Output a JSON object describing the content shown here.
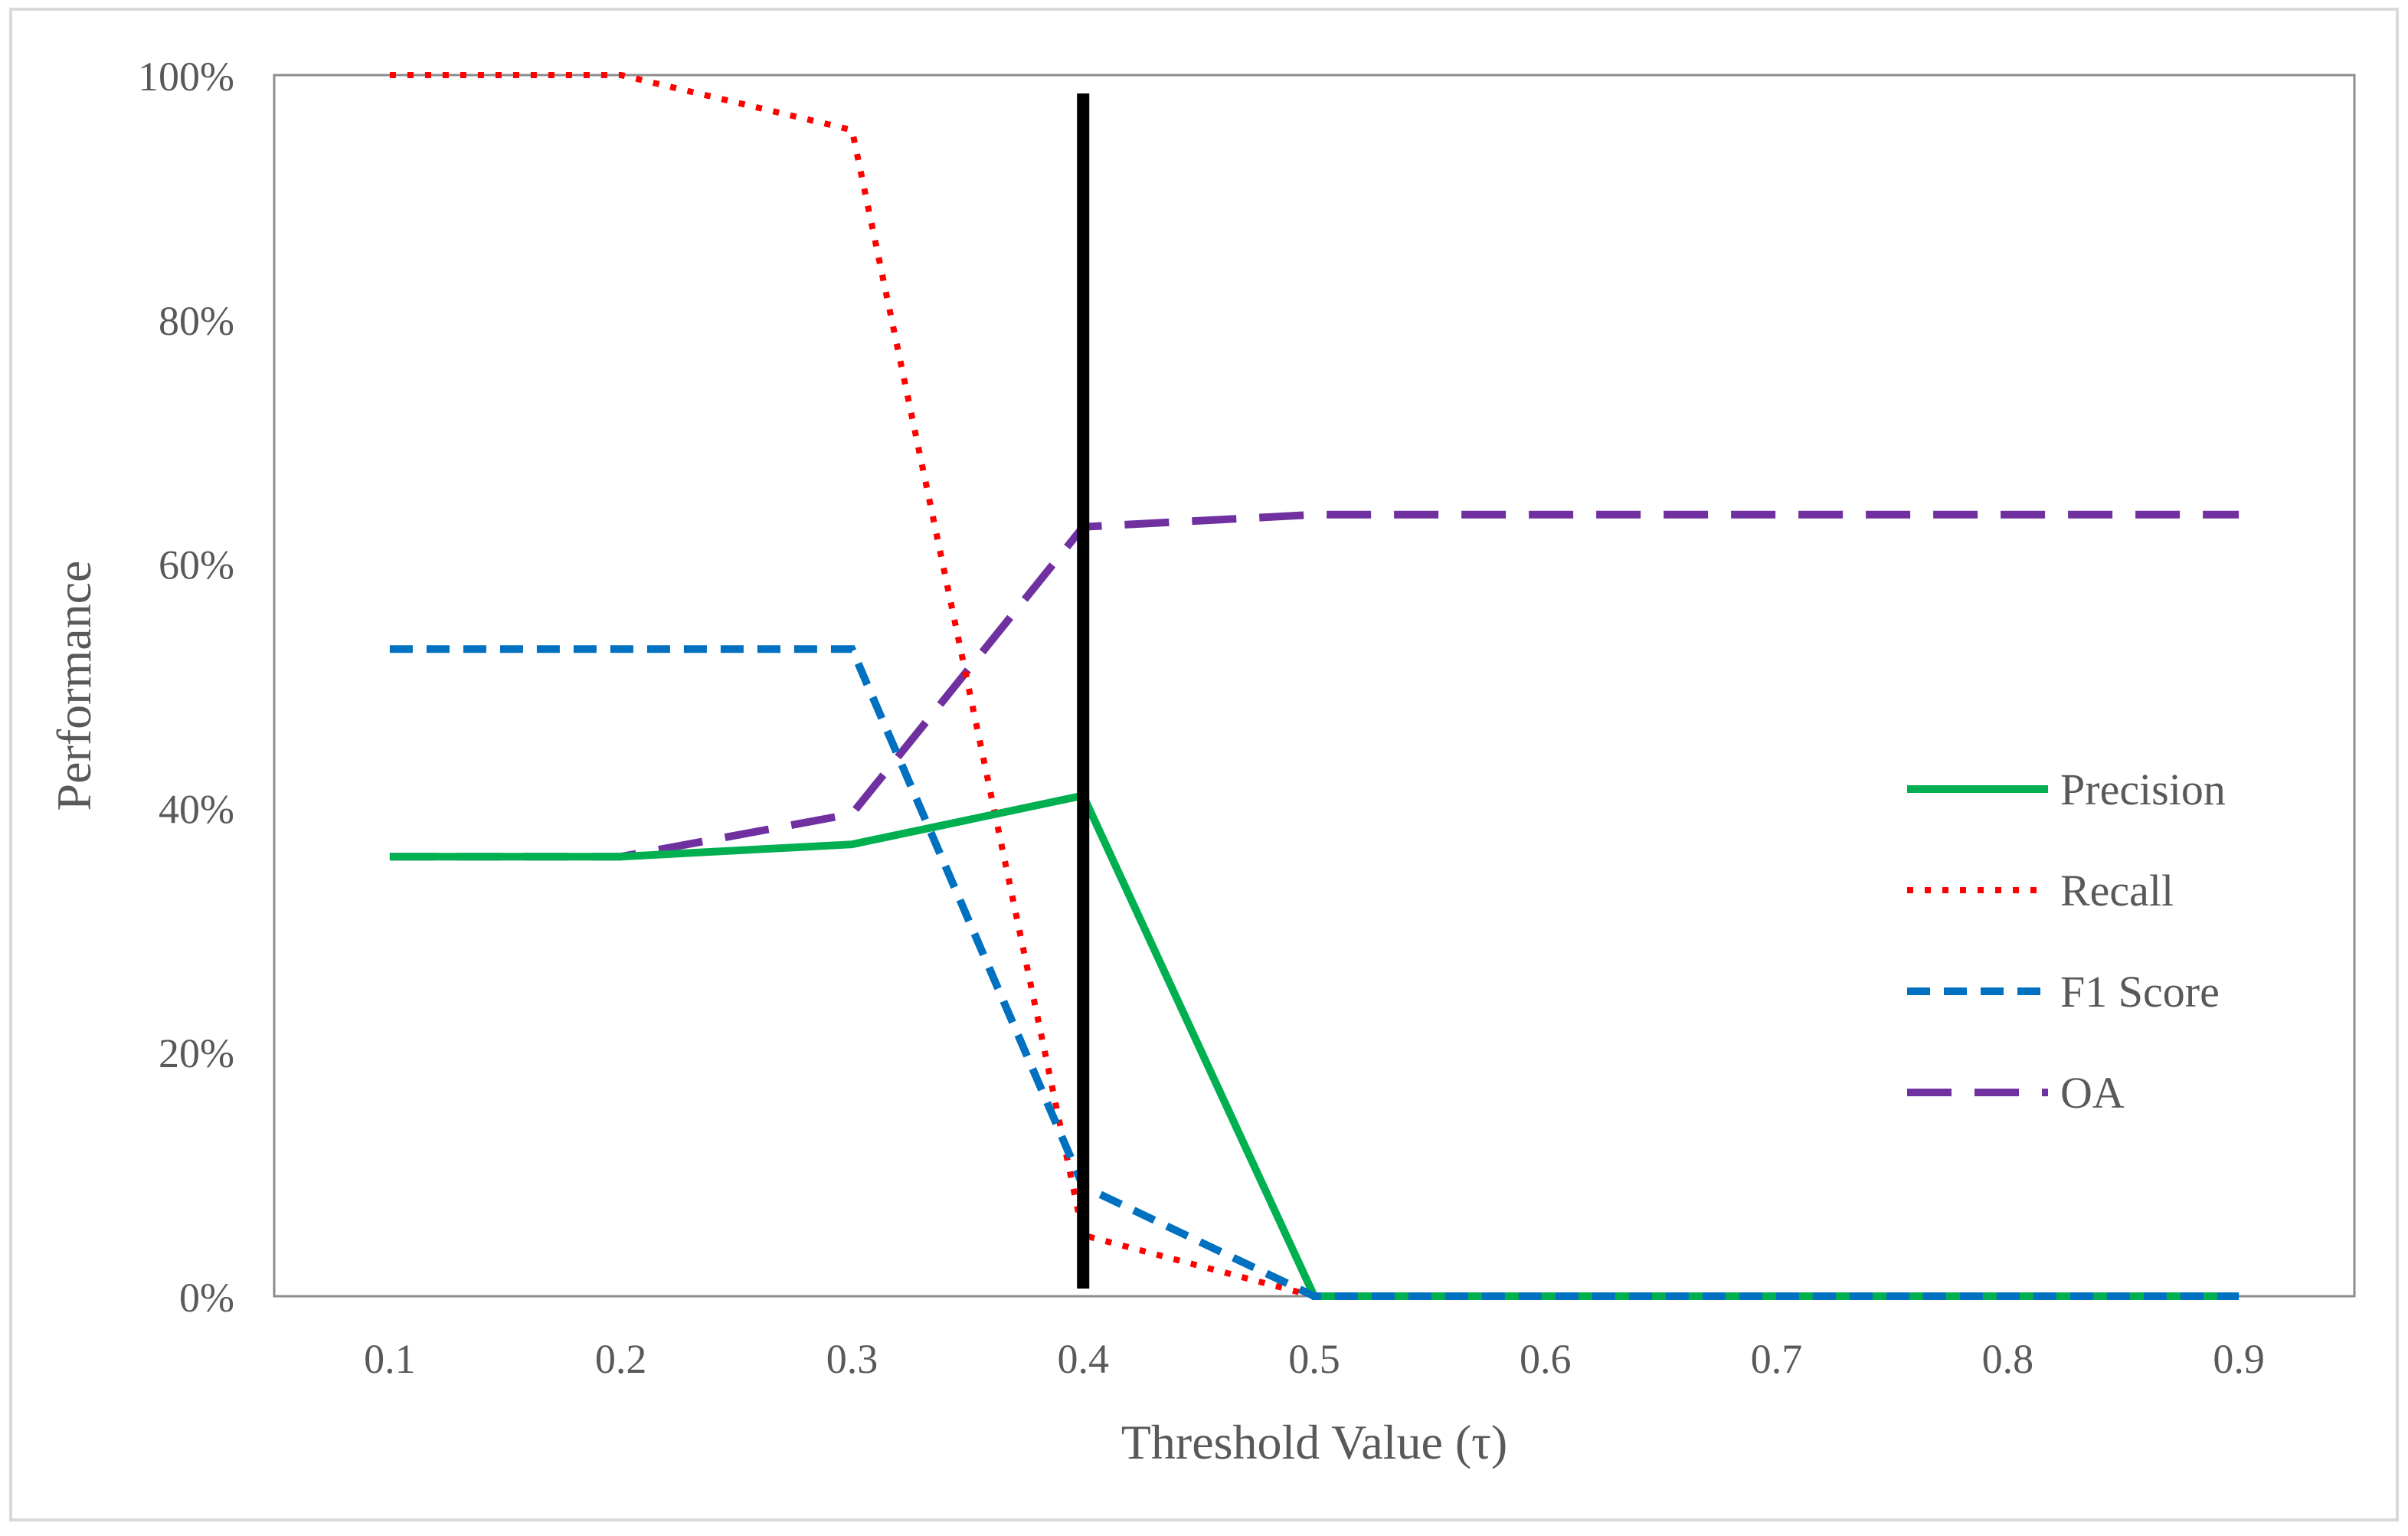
{
  "chart_data": {
    "type": "line",
    "title": "",
    "xlabel": "Threshold Value (τ)",
    "ylabel": "Performance",
    "x": [
      0.1,
      0.2,
      0.3,
      0.4,
      0.5,
      0.6,
      0.7,
      0.8,
      0.9
    ],
    "x_tick_labels": [
      "0.1",
      "0.2",
      "0.3",
      "0.4",
      "0.5",
      "0.6",
      "0.7",
      "0.8",
      "0.9"
    ],
    "y_tick_values": [
      0,
      20,
      40,
      60,
      80,
      100
    ],
    "y_tick_labels": [
      "0%",
      "20%",
      "40%",
      "60%",
      "80%",
      "100%"
    ],
    "xlim": [
      0.05,
      0.95
    ],
    "ylim": [
      0,
      100
    ],
    "grid": false,
    "legend_position": "right",
    "marker_line_x": 0.4,
    "marker_line_color": "#000000",
    "series": [
      {
        "name": "Precision",
        "color": "#00b050",
        "style": "solid",
        "values": [
          36,
          36,
          37,
          41,
          0,
          0,
          0,
          0,
          0
        ]
      },
      {
        "name": "Recall",
        "color": "#ff0000",
        "style": "dotted",
        "values": [
          100,
          100,
          95.5,
          5,
          0,
          0,
          0,
          0,
          0
        ]
      },
      {
        "name": "F1 Score",
        "color": "#0070c0",
        "style": "dashed",
        "values": [
          53,
          53,
          53,
          9,
          0,
          0,
          0,
          0,
          0
        ]
      },
      {
        "name": "OA",
        "color": "#7030a0",
        "style": "longdash",
        "values": [
          36,
          36,
          39.5,
          63,
          64,
          64,
          64,
          64,
          64
        ]
      }
    ]
  }
}
